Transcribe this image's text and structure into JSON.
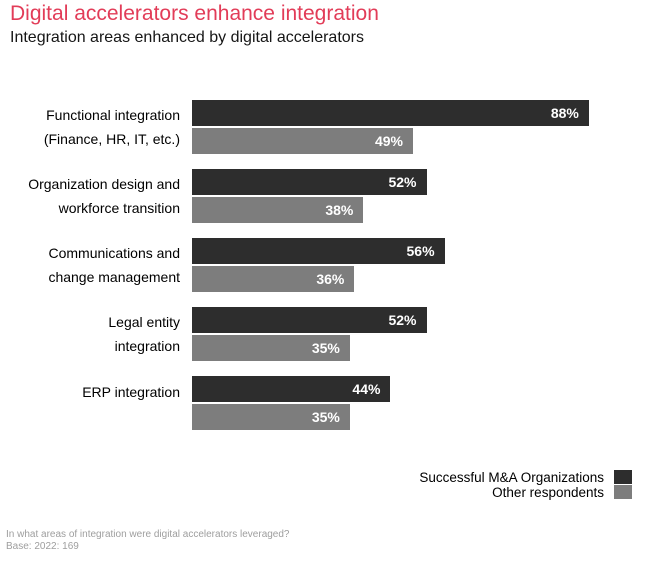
{
  "header": {
    "title": "Digital accelerators enhance integration",
    "subtitle": "Integration areas enhanced by digital accelerators"
  },
  "colors": {
    "accent": "#e23c58",
    "dark_bar": "#2d2d2d",
    "gray_bar": "#7d7d7d",
    "footnote_text": "#9e9e9e"
  },
  "chart_data": {
    "type": "bar",
    "orientation": "horizontal",
    "title": "Digital accelerators enhance integration",
    "subtitle": "Integration areas enhanced by digital accelerators",
    "categories": [
      "Functional integration (Finance, HR, IT, etc.)",
      "Organization design and workforce transition",
      "Communications and change management",
      "Legal entity integration",
      "ERP integration"
    ],
    "category_lines": [
      [
        "Functional integration",
        "(Finance, HR, IT, etc.)"
      ],
      [
        "Organization design and",
        "workforce transition"
      ],
      [
        "Communications and",
        "change management"
      ],
      [
        "Legal entity",
        "integration"
      ],
      [
        "ERP integration"
      ]
    ],
    "series": [
      {
        "name": "Successful M&A Organizations",
        "color": "#2d2d2d",
        "values": [
          88,
          52,
          56,
          52,
          44
        ]
      },
      {
        "name": "Other respondents",
        "color": "#7d7d7d",
        "values": [
          49,
          38,
          36,
          35,
          35
        ]
      }
    ],
    "value_suffix": "%",
    "xlim": [
      0,
      100
    ],
    "grid": false,
    "legend_position": "bottom-right",
    "value_labels": "inside-end"
  },
  "footnote": {
    "line1": "In what areas of integration were digital accelerators leveraged?",
    "line2": "Base: 2022: 169"
  }
}
